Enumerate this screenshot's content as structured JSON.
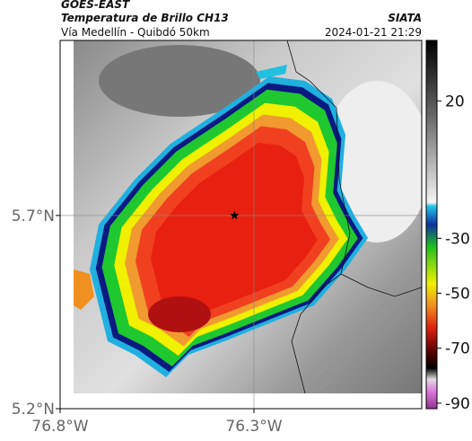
{
  "header": {
    "satellite": "GOES-EAST",
    "title": "Temperatura de Brillo CH13",
    "subtitle": "Vía Medellín - Quibdó 50km",
    "source": "SIATA",
    "datetime": "2024-01-21 21:29"
  },
  "map": {
    "xlim": [
      -76.8,
      -75.867
    ],
    "ylim": [
      5.2,
      6.153
    ],
    "xticks": [
      {
        "value": -76.8,
        "label": "76.8°W"
      },
      {
        "value": -76.3,
        "label": "76.3°W"
      }
    ],
    "yticks": [
      {
        "value": 5.2,
        "label": "5.2°N"
      },
      {
        "value": 5.7,
        "label": "5.7°N"
      }
    ],
    "marker": {
      "lon": -76.35,
      "lat": 5.7
    }
  },
  "colorbar": {
    "lim": [
      -92,
      42
    ],
    "ticks": [
      20,
      -30,
      -50,
      -70,
      -90
    ]
  }
}
